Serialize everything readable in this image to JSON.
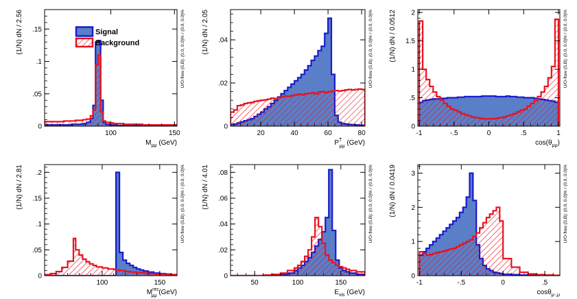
{
  "colors": {
    "signal_line": "#1a1acc",
    "signal_fill": "#5a7fc8",
    "background_line": "#e8121e",
    "frame": "#000000"
  },
  "legend": {
    "signal": "Signal",
    "background": "Background"
  },
  "chart_data": [
    {
      "type": "histogram",
      "ylabel": "(1/N) dN / 2.56",
      "xlabel_main": "M",
      "xlabel_sub": "μμ",
      "xlabel_sup": "",
      "xlabel_unit": " (GeV)",
      "side_label": "U/O-flow (S,B): (0.0, 0.0)% / (0.0, 0.0)%",
      "xlim": [
        48,
        152
      ],
      "ylim": [
        0,
        0.18
      ],
      "xticks": [
        100,
        150
      ],
      "yticks": [
        0,
        0.05,
        0.1,
        0.15
      ],
      "legend": true,
      "signal": {
        "edges": [
          48,
          51,
          54,
          57,
          60,
          63,
          66,
          69,
          72,
          75,
          78,
          81,
          84,
          86,
          88,
          90,
          92,
          94,
          96,
          99,
          102,
          105,
          110,
          115,
          120,
          125,
          130,
          135,
          140,
          145,
          152
        ],
        "values": [
          0.002,
          0.002,
          0.002,
          0.002,
          0.002,
          0.002,
          0.002,
          0.003,
          0.003,
          0.003,
          0.004,
          0.006,
          0.012,
          0.032,
          0.13,
          0.14,
          0.04,
          0.006,
          0.003,
          0.002,
          0.002,
          0.001,
          0.001,
          0.001,
          0.001,
          0.001,
          0.001,
          0.001,
          0.001,
          0.001
        ]
      },
      "background": {
        "edges": [
          48,
          51,
          54,
          57,
          60,
          63,
          66,
          69,
          72,
          75,
          78,
          81,
          84,
          86,
          88,
          90,
          92,
          94,
          96,
          99,
          102,
          105,
          110,
          115,
          120,
          125,
          130,
          135,
          140,
          145,
          152
        ],
        "values": [
          0.007,
          0.007,
          0.007,
          0.007,
          0.007,
          0.008,
          0.008,
          0.008,
          0.009,
          0.009,
          0.01,
          0.011,
          0.016,
          0.025,
          0.095,
          0.11,
          0.022,
          0.008,
          0.006,
          0.005,
          0.004,
          0.004,
          0.003,
          0.003,
          0.003,
          0.002,
          0.002,
          0.002,
          0.002,
          0.002
        ]
      }
    },
    {
      "type": "histogram",
      "ylabel": "(1/N) dN / 2.05",
      "xlabel_main": "P",
      "xlabel_sub": "μμ",
      "xlabel_sup": "T",
      "xlabel_unit": " (GeV)",
      "side_label": "U/O-flow (S,B): (0.0, 0.0)% / (0.0, 0.0)%",
      "xlim": [
        2,
        82
      ],
      "ylim": [
        0,
        0.054
      ],
      "xticks": [
        20,
        40,
        60,
        80
      ],
      "yticks": [
        0,
        0.02,
        0.04
      ],
      "legend": false,
      "signal": {
        "edges": [
          2,
          4,
          6,
          8,
          10,
          12,
          14,
          16,
          18,
          20,
          22,
          24,
          26,
          28,
          30,
          32,
          34,
          36,
          38,
          40,
          42,
          44,
          46,
          48,
          50,
          52,
          54,
          56,
          58,
          60,
          62,
          64,
          66,
          68,
          70,
          72,
          74,
          76,
          78,
          80,
          82
        ],
        "values": [
          0.0008,
          0.001,
          0.0015,
          0.002,
          0.0025,
          0.003,
          0.0035,
          0.0045,
          0.0055,
          0.0065,
          0.008,
          0.009,
          0.0105,
          0.012,
          0.0135,
          0.015,
          0.0165,
          0.018,
          0.0195,
          0.021,
          0.0225,
          0.024,
          0.026,
          0.028,
          0.0305,
          0.0325,
          0.035,
          0.037,
          0.043,
          0.05,
          0.024,
          0.005,
          0.0018,
          0.0012,
          0.001,
          0.0008,
          0.0007,
          0.0006,
          0.0005,
          0.0004
        ]
      },
      "background": {
        "edges": [
          2,
          4,
          6,
          8,
          10,
          12,
          14,
          16,
          18,
          20,
          22,
          24,
          26,
          28,
          30,
          32,
          34,
          36,
          38,
          40,
          42,
          44,
          46,
          48,
          50,
          52,
          54,
          56,
          58,
          60,
          62,
          64,
          66,
          68,
          70,
          72,
          74,
          76,
          78,
          80,
          82
        ],
        "values": [
          0.0065,
          0.0075,
          0.0095,
          0.0098,
          0.0105,
          0.0108,
          0.011,
          0.0115,
          0.0118,
          0.012,
          0.0122,
          0.0125,
          0.013,
          0.0128,
          0.0132,
          0.0135,
          0.014,
          0.0138,
          0.0142,
          0.0145,
          0.0148,
          0.0145,
          0.015,
          0.0152,
          0.0155,
          0.015,
          0.0158,
          0.016,
          0.0155,
          0.016,
          0.0162,
          0.0165,
          0.0163,
          0.0165,
          0.0168,
          0.017,
          0.0168,
          0.017,
          0.0172,
          0.017
        ]
      }
    },
    {
      "type": "histogram",
      "ylabel": "(1/N) dN / 0.0512",
      "xlabel_main": "cos(θ",
      "xlabel_sub": "μμ",
      "xlabel_sup": "",
      "xlabel_unit": ")",
      "side_label": "U/O-flow (S,B): (0.0, 0.0)% / (0.0, 0.0)%",
      "xlim": [
        -1.02,
        1.02
      ],
      "ylim": [
        0,
        2.05
      ],
      "xticks": [
        -1,
        -0.5,
        0,
        0.5,
        1
      ],
      "yticks": [
        0,
        0.5,
        1,
        1.5,
        2
      ],
      "legend": false,
      "signal": {
        "edges": [
          -1,
          -0.95,
          -0.9,
          -0.85,
          -0.8,
          -0.75,
          -0.7,
          -0.65,
          -0.6,
          -0.55,
          -0.5,
          -0.45,
          -0.4,
          -0.35,
          -0.3,
          -0.25,
          -0.2,
          -0.15,
          -0.1,
          -0.05,
          0,
          0.05,
          0.1,
          0.15,
          0.2,
          0.25,
          0.3,
          0.35,
          0.4,
          0.45,
          0.5,
          0.55,
          0.6,
          0.65,
          0.7,
          0.75,
          0.8,
          0.85,
          0.9,
          0.95,
          1
        ],
        "values": [
          0.42,
          0.45,
          0.46,
          0.47,
          0.48,
          0.48,
          0.49,
          0.49,
          0.5,
          0.5,
          0.5,
          0.51,
          0.51,
          0.52,
          0.52,
          0.52,
          0.52,
          0.52,
          0.53,
          0.53,
          0.53,
          0.53,
          0.52,
          0.52,
          0.52,
          0.53,
          0.52,
          0.52,
          0.51,
          0.51,
          0.5,
          0.5,
          0.5,
          0.49,
          0.48,
          0.47,
          0.46,
          0.45,
          0.44,
          0.42
        ]
      },
      "background": {
        "edges": [
          -1,
          -0.95,
          -0.9,
          -0.85,
          -0.8,
          -0.75,
          -0.7,
          -0.65,
          -0.6,
          -0.55,
          -0.5,
          -0.45,
          -0.4,
          -0.35,
          -0.3,
          -0.25,
          -0.2,
          -0.15,
          -0.1,
          -0.05,
          0,
          0.05,
          0.1,
          0.15,
          0.2,
          0.25,
          0.3,
          0.35,
          0.4,
          0.45,
          0.5,
          0.55,
          0.6,
          0.65,
          0.7,
          0.75,
          0.8,
          0.85,
          0.9,
          0.95,
          1
        ],
        "values": [
          1.85,
          1.0,
          0.82,
          0.7,
          0.6,
          0.52,
          0.46,
          0.4,
          0.35,
          0.3,
          0.28,
          0.25,
          0.22,
          0.2,
          0.18,
          0.16,
          0.15,
          0.14,
          0.13,
          0.13,
          0.13,
          0.13,
          0.14,
          0.15,
          0.16,
          0.18,
          0.2,
          0.22,
          0.25,
          0.28,
          0.3,
          0.35,
          0.4,
          0.45,
          0.52,
          0.6,
          0.7,
          0.85,
          1.05,
          1.88
        ]
      }
    },
    {
      "type": "histogram",
      "ylabel": "(1/N) dN / 2.81",
      "xlabel_main": "M",
      "xlabel_sub": "μμ",
      "xlabel_sup": "rec",
      "xlabel_unit": " (GeV)",
      "side_label": "U/O-flow (S,B): (0.0, 0.0)% / (0.0, 0.0)%",
      "xlim": [
        50,
        165
      ],
      "ylim": [
        0,
        0.215
      ],
      "xticks": [
        100,
        150
      ],
      "yticks": [
        0,
        0.05,
        0.1,
        0.15,
        0.2
      ],
      "legend": false,
      "signal": {
        "edges": [
          50,
          55,
          60,
          65,
          70,
          75,
          80,
          85,
          90,
          95,
          100,
          105,
          110,
          112,
          115,
          118,
          121,
          124,
          127,
          130,
          133,
          136,
          140,
          145,
          150,
          155,
          160,
          165
        ],
        "values": [
          0,
          0,
          0,
          0,
          0,
          0,
          0,
          0,
          0,
          0,
          0,
          0,
          0,
          0.2,
          0.045,
          0.03,
          0.024,
          0.02,
          0.016,
          0.013,
          0.011,
          0.009,
          0.007,
          0.005,
          0.004,
          0.003,
          0.002
        ]
      },
      "background": {
        "edges": [
          50,
          55,
          60,
          65,
          70,
          75,
          77,
          80,
          83,
          86,
          89,
          92,
          95,
          100,
          105,
          110,
          112,
          115,
          120,
          125,
          130,
          135,
          140,
          145,
          150,
          155,
          160,
          165
        ],
        "values": [
          0.002,
          0.004,
          0.008,
          0.016,
          0.028,
          0.072,
          0.05,
          0.04,
          0.032,
          0.027,
          0.023,
          0.02,
          0.017,
          0.015,
          0.013,
          0.012,
          0.011,
          0.01,
          0.008,
          0.007,
          0.006,
          0.005,
          0.004,
          0.003,
          0.003,
          0.002,
          0.002
        ]
      }
    },
    {
      "type": "histogram",
      "ylabel": "(1/N) dN / 4.01",
      "xlabel_main": "E",
      "xlabel_sub": "vis",
      "xlabel_sup": "",
      "xlabel_unit": " (GeV)",
      "side_label": "U/O-flow (S,B): (0.0, 0.0)% / (0.0, 0.0)%",
      "xlim": [
        22,
        178
      ],
      "ylim": [
        0,
        0.086
      ],
      "xticks": [
        50,
        100,
        150
      ],
      "yticks": [
        0,
        0.02,
        0.04,
        0.06,
        0.08
      ],
      "legend": false,
      "signal": {
        "edges": [
          22,
          30,
          40,
          50,
          60,
          70,
          80,
          88,
          96,
          100,
          104,
          108,
          112,
          116,
          120,
          124,
          128,
          132,
          136,
          140,
          144,
          148,
          152,
          156,
          160,
          168,
          178
        ],
        "values": [
          0,
          0,
          0,
          0,
          0.0002,
          0.0005,
          0.001,
          0.002,
          0.004,
          0.006,
          0.008,
          0.011,
          0.014,
          0.018,
          0.023,
          0.028,
          0.034,
          0.045,
          0.082,
          0.035,
          0.012,
          0.006,
          0.004,
          0.003,
          0.002,
          0.001
        ]
      },
      "background": {
        "edges": [
          22,
          30,
          40,
          50,
          60,
          70,
          80,
          88,
          96,
          100,
          104,
          108,
          112,
          116,
          120,
          124,
          128,
          132,
          136,
          140,
          144,
          148,
          152,
          156,
          160,
          168,
          178
        ],
        "values": [
          0,
          0,
          0,
          0,
          0.0005,
          0.001,
          0.002,
          0.004,
          0.006,
          0.008,
          0.011,
          0.015,
          0.02,
          0.03,
          0.045,
          0.038,
          0.025,
          0.016,
          0.012,
          0.01,
          0.008,
          0.007,
          0.006,
          0.005,
          0.004,
          0.003
        ]
      }
    },
    {
      "type": "histogram",
      "ylabel": "(1/N) dN / 0.0419",
      "xlabel_main": "cosθ",
      "xlabel_sub": "μ-,μ",
      "xlabel_sup": "",
      "xlabel_unit": "",
      "side_label": "U/O-flow (S,B): (0.0, 0.0)% / (0.0, 0.0)%",
      "xlim": [
        -1.02,
        0.68
      ],
      "ylim": [
        0,
        3.25
      ],
      "xticks": [
        -1,
        -0.5,
        0,
        0.5
      ],
      "yticks": [
        0,
        1,
        2,
        3
      ],
      "legend": false,
      "signal": {
        "edges": [
          -1,
          -0.96,
          -0.92,
          -0.88,
          -0.84,
          -0.8,
          -0.76,
          -0.72,
          -0.68,
          -0.64,
          -0.6,
          -0.56,
          -0.52,
          -0.48,
          -0.44,
          -0.4,
          -0.36,
          -0.32,
          -0.28,
          -0.24,
          -0.2,
          -0.16,
          -0.12,
          -0.08,
          -0.04,
          0,
          0.1,
          0.2,
          0.3,
          0.4,
          0.5,
          0.6,
          0.68
        ],
        "values": [
          0.6,
          0.7,
          0.8,
          0.9,
          1.0,
          1.1,
          1.2,
          1.3,
          1.4,
          1.5,
          1.6,
          1.7,
          1.85,
          2.0,
          2.3,
          3.0,
          2.2,
          0.9,
          0.5,
          0.3,
          0.2,
          0.15,
          0.1,
          0.08,
          0.06,
          0.04,
          0.03,
          0.02,
          0.01,
          0.01,
          0.01,
          0.0
        ]
      },
      "background": {
        "edges": [
          -1,
          -0.96,
          -0.92,
          -0.88,
          -0.84,
          -0.8,
          -0.76,
          -0.72,
          -0.68,
          -0.64,
          -0.6,
          -0.56,
          -0.52,
          -0.48,
          -0.44,
          -0.4,
          -0.36,
          -0.32,
          -0.28,
          -0.24,
          -0.2,
          -0.16,
          -0.12,
          -0.08,
          -0.04,
          0,
          0.1,
          0.2,
          0.3,
          0.4,
          0.5,
          0.6,
          0.68
        ],
        "values": [
          0.7,
          0.65,
          0.6,
          0.62,
          0.65,
          0.68,
          0.7,
          0.72,
          0.75,
          0.78,
          0.8,
          0.85,
          0.9,
          0.95,
          1.0,
          1.05,
          1.15,
          1.25,
          1.4,
          1.55,
          1.7,
          1.8,
          1.9,
          2.0,
          1.6,
          0.5,
          0.25,
          0.1,
          0.05,
          0.03,
          0.02,
          0.01
        ]
      }
    }
  ]
}
